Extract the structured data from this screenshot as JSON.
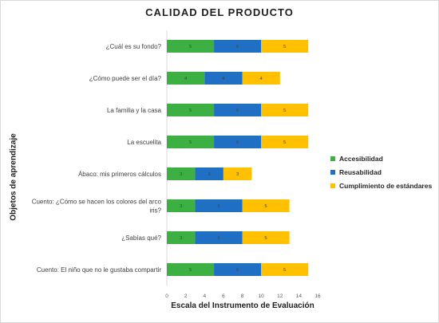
{
  "chart_data": {
    "type": "bar",
    "orientation": "horizontal",
    "stacked": true,
    "title": "CALIDAD DEL PRODUCTO",
    "xlabel": "Escala del Instrumento de Evaluación",
    "ylabel": "Objetos de aprendizaje",
    "xlim": [
      0,
      16
    ],
    "xticks": [
      0,
      2,
      4,
      6,
      8,
      10,
      12,
      14,
      16
    ],
    "grid": false,
    "legend_position": "right",
    "categories": [
      "¿Cuál es su fondo?",
      "¿Cómo puede ser el día?",
      "La familia y la casa",
      "La escuelita",
      "Ábaco: mis primeros cálculos",
      "Cuento: ¿Cómo se hacen los colores del arco iris?",
      "¿Sabías qué?",
      "Cuento: El niño que no le gustaba compartir"
    ],
    "category_lines": [
      [
        "¿Cuál es su fondo?"
      ],
      [
        "¿Cómo puede ser el día?"
      ],
      [
        "La familia y la casa"
      ],
      [
        "La escuelita"
      ],
      [
        "Ábaco: mis primeros cálculos"
      ],
      [
        "Cuento: ¿Cómo se hacen los colores del arco",
        "iris?"
      ],
      [
        "¿Sabías qué?"
      ],
      [
        "Cuento: El niño que no le gustaba compartir"
      ]
    ],
    "series": [
      {
        "name": "Accesibilidad",
        "color": "#3cb043",
        "values": [
          5,
          4,
          5,
          5,
          3,
          3,
          3,
          5
        ]
      },
      {
        "name": "Reusabilidad",
        "color": "#1f6fc5",
        "values": [
          5,
          4,
          5,
          5,
          3,
          5,
          5,
          5
        ]
      },
      {
        "name": "Cumplimiento de estándares",
        "color": "#ffc000",
        "values": [
          5,
          4,
          5,
          5,
          3,
          5,
          5,
          5
        ]
      }
    ]
  }
}
